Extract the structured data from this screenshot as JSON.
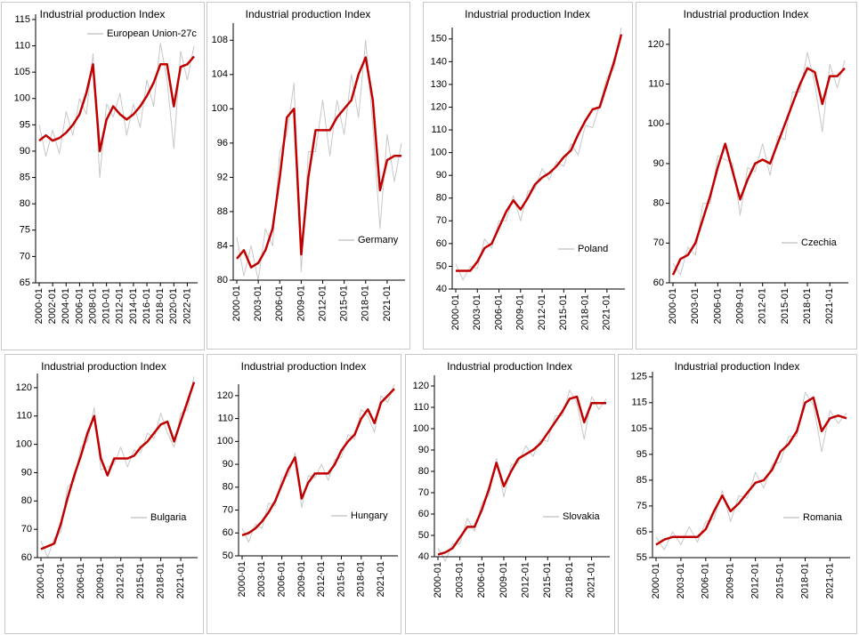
{
  "chart_data": [
    {
      "type": "line",
      "title": "Industrial production Index",
      "legend": "upper left",
      "categories": [
        "2000-01",
        null,
        "2002-01",
        null,
        "2004-01",
        null,
        "2006-01",
        null,
        "2008-01",
        null,
        "2010-01",
        null,
        "2012-01",
        null,
        "2014-01",
        null,
        "2016-01",
        null,
        "2018-01",
        null,
        "2020-01",
        null,
        "2022-01",
        null
      ],
      "ylim": [
        65,
        116
      ],
      "yticks": [
        65,
        70,
        75,
        80,
        85,
        90,
        95,
        100,
        105,
        110,
        115
      ],
      "series": [
        {
          "name": "European Union-27c",
          "color": "#c8c8c8",
          "values": [
            95,
            89,
            94,
            89.5,
            97.5,
            93,
            100,
            97,
            108.5,
            85,
            99,
            96.5,
            101,
            93,
            99,
            94.5,
            103.5,
            98.5,
            110.5,
            103.5,
            90.5,
            109,
            103.5,
            110
          ]
        },
        {
          "color": "#c00000",
          "values": [
            92,
            93,
            92,
            92.5,
            93.5,
            95,
            97,
            101,
            106.5,
            90,
            96,
            98.5,
            97,
            96,
            97,
            98.5,
            100.5,
            103,
            106.5,
            106.5,
            98.5,
            106,
            106.5,
            108
          ]
        }
      ]
    },
    {
      "type": "line",
      "title": "Industrial production Index",
      "legend": "lower right",
      "categories": [
        "2000-01",
        null,
        null,
        "2003-01",
        null,
        null,
        "2006-01",
        null,
        null,
        "2009-01",
        null,
        null,
        "2012-01",
        null,
        null,
        "2015-01",
        null,
        null,
        "2018-01",
        null,
        null,
        "2021-01",
        null,
        null
      ],
      "ylim": [
        80,
        110
      ],
      "yticks": [
        80,
        84,
        88,
        92,
        96,
        100,
        104,
        108
      ],
      "series": [
        {
          "name": "Germany",
          "color": "#c8c8c8",
          "values": [
            85,
            80.5,
            84,
            80,
            86,
            84,
            95,
            97,
            103,
            81,
            95,
            95,
            101,
            94.5,
            101,
            97,
            104,
            99,
            108,
            98,
            86,
            97,
            91.5,
            96
          ]
        },
        {
          "color": "#c00000",
          "values": [
            82.5,
            83.5,
            81.5,
            82,
            83.5,
            86,
            92,
            99,
            100,
            83,
            92,
            97.5,
            97.5,
            97.5,
            99,
            100,
            101,
            104,
            106,
            101,
            90.5,
            94,
            94.5,
            94.5
          ]
        }
      ]
    },
    {
      "type": "line",
      "title": "Industrial production Index",
      "legend": "lower right",
      "categories": [
        "2000-01",
        null,
        null,
        "2003-01",
        null,
        null,
        "2006-01",
        null,
        null,
        "2009-01",
        null,
        null,
        "2012-01",
        null,
        null,
        "2015-01",
        null,
        null,
        "2018-01",
        null,
        null,
        "2021-01",
        null,
        null
      ],
      "ylim": [
        40,
        155
      ],
      "yticks": [
        40,
        50,
        60,
        70,
        80,
        90,
        100,
        110,
        120,
        130,
        140,
        150
      ],
      "series": [
        {
          "name": "Poland",
          "color": "#c8c8c8",
          "values": [
            51,
            44,
            50,
            49,
            62,
            58,
            70,
            70,
            81,
            70,
            83,
            84,
            93,
            88,
            96,
            94,
            104,
            99,
            112,
            111,
            121,
            133,
            137,
            155
          ]
        },
        {
          "color": "#c00000",
          "values": [
            48,
            48,
            48,
            52,
            58,
            60,
            67,
            74,
            79,
            75,
            80,
            86,
            89,
            91,
            94,
            98,
            101,
            108,
            114,
            119,
            120,
            130,
            140,
            152
          ]
        }
      ]
    },
    {
      "type": "line",
      "title": "Industrial production Index",
      "legend": "lower right",
      "categories": [
        "2000-01",
        null,
        null,
        "2003-01",
        null,
        null,
        "2006-01",
        null,
        null,
        "2009-01",
        null,
        null,
        "2012-01",
        null,
        null,
        "2015-01",
        null,
        null,
        "2018-01",
        null,
        null,
        "2021-01",
        null,
        null
      ],
      "ylim": [
        60,
        124
      ],
      "yticks": [
        60,
        70,
        80,
        90,
        100,
        110,
        120
      ],
      "series": [
        {
          "name": "Czechia",
          "color": "#c8c8c8",
          "values": [
            65,
            62,
            69,
            67,
            80,
            80,
            92,
            91,
            90,
            77,
            89,
            88,
            95,
            87,
            97,
            96,
            108,
            108,
            118,
            110,
            98,
            115,
            109,
            116
          ]
        },
        {
          "color": "#c00000",
          "values": [
            62,
            66,
            67,
            70,
            76,
            82,
            89,
            95,
            88,
            81,
            86,
            90,
            91,
            90,
            95,
            100,
            105,
            110,
            114,
            113,
            105,
            112,
            112,
            114
          ]
        }
      ]
    },
    {
      "type": "line",
      "title": "Industrial production Index",
      "legend": "lower right",
      "categories": [
        "2000-01",
        null,
        null,
        "2003-01",
        null,
        null,
        "2006-01",
        null,
        null,
        "2009-01",
        null,
        null,
        "2012-01",
        null,
        null,
        "2015-01",
        null,
        null,
        "2018-01",
        null,
        null,
        "2021-01",
        null,
        null
      ],
      "ylim": [
        60,
        125
      ],
      "yticks": [
        60,
        70,
        80,
        90,
        100,
        110,
        120
      ],
      "series": [
        {
          "name": "Bulgaria",
          "color": "#c8c8c8",
          "values": [
            66,
            60,
            67,
            69,
            85,
            87,
            99,
            101,
            113,
            91,
            92,
            93,
            99,
            92,
            98,
            97,
            104,
            102,
            111,
            104,
            99,
            111,
            112,
            124
          ]
        },
        {
          "color": "#c00000",
          "values": [
            63,
            64,
            65,
            72,
            81,
            89,
            96,
            104,
            110,
            95,
            89,
            95,
            95,
            95,
            96,
            99,
            101,
            104,
            107,
            108,
            101,
            108,
            115,
            122
          ]
        }
      ]
    },
    {
      "type": "line",
      "title": "Industrial production Index",
      "legend": "lower right",
      "categories": [
        "2000-01",
        null,
        null,
        "2003-01",
        null,
        null,
        "2006-01",
        null,
        null,
        "2009-01",
        null,
        null,
        "2012-01",
        null,
        null,
        "2015-01",
        null,
        null,
        "2018-01",
        null,
        null,
        "2021-01",
        null,
        null
      ],
      "ylim": [
        50,
        125
      ],
      "yticks": [
        50,
        60,
        70,
        80,
        90,
        100,
        110,
        120
      ],
      "series": [
        {
          "name": "Hungary",
          "color": "#c8c8c8",
          "values": [
            62,
            56,
            64,
            62,
            73,
            72,
            84,
            85,
            95,
            71,
            85,
            84,
            90,
            83,
            92,
            93,
            103,
            101,
            114,
            111,
            104,
            120,
            117,
            125
          ]
        },
        {
          "color": "#c00000",
          "values": [
            59,
            60,
            62,
            65,
            69,
            74,
            81,
            88,
            93,
            75,
            82,
            86,
            86,
            86,
            90,
            96,
            100,
            103,
            110,
            114,
            108,
            117,
            120,
            123
          ]
        }
      ]
    },
    {
      "type": "line",
      "title": "Industrial production Index",
      "legend": "lower right",
      "categories": [
        "2000-01",
        null,
        null,
        "2003-01",
        null,
        null,
        "2006-01",
        null,
        null,
        "2009-01",
        null,
        null,
        "2012-01",
        null,
        null,
        "2015-01",
        null,
        null,
        "2018-01",
        null,
        null,
        "2021-01",
        null,
        null
      ],
      "ylim": [
        40,
        125
      ],
      "yticks": [
        40,
        50,
        60,
        70,
        80,
        90,
        100,
        110,
        120
      ],
      "series": [
        {
          "name": "Slovakia",
          "color": "#c8c8c8",
          "values": [
            44,
            38,
            46,
            46,
            58,
            52,
            65,
            69,
            86,
            68,
            83,
            84,
            92,
            87,
            95,
            94,
            106,
            106,
            118,
            112,
            95,
            115,
            109,
            114
          ]
        },
        {
          "color": "#c00000",
          "values": [
            41,
            42,
            44,
            49,
            54,
            54,
            62,
            72,
            84,
            73,
            80,
            86,
            88,
            90,
            93,
            98,
            103,
            108,
            114,
            115,
            103,
            112,
            112,
            112
          ]
        }
      ]
    },
    {
      "type": "line",
      "title": "Industrial production Index",
      "legend": "lower right",
      "categories": [
        "2000-01",
        null,
        null,
        "2003-01",
        null,
        null,
        "2006-01",
        null,
        null,
        "2009-01",
        null,
        null,
        "2012-01",
        null,
        null,
        "2015-01",
        null,
        null,
        "2018-01",
        null,
        null,
        "2021-01",
        null,
        null
      ],
      "ylim": [
        55,
        127
      ],
      "yticks": [
        55,
        65,
        75,
        85,
        95,
        105,
        115,
        125
      ],
      "series": [
        {
          "name": "Romania",
          "color": "#c8c8c8",
          "values": [
            63,
            58,
            65,
            60,
            67,
            61,
            69,
            70,
            81,
            69,
            79,
            78,
            88,
            82,
            91,
            92,
            102,
            102,
            119,
            114,
            96,
            112,
            107,
            111
          ]
        },
        {
          "color": "#c00000",
          "values": [
            60,
            62,
            63,
            63,
            63,
            63,
            66,
            73,
            79,
            73,
            76,
            80,
            84,
            85,
            89,
            96,
            99,
            104,
            115,
            117,
            104,
            109,
            110,
            109
          ]
        }
      ]
    }
  ]
}
